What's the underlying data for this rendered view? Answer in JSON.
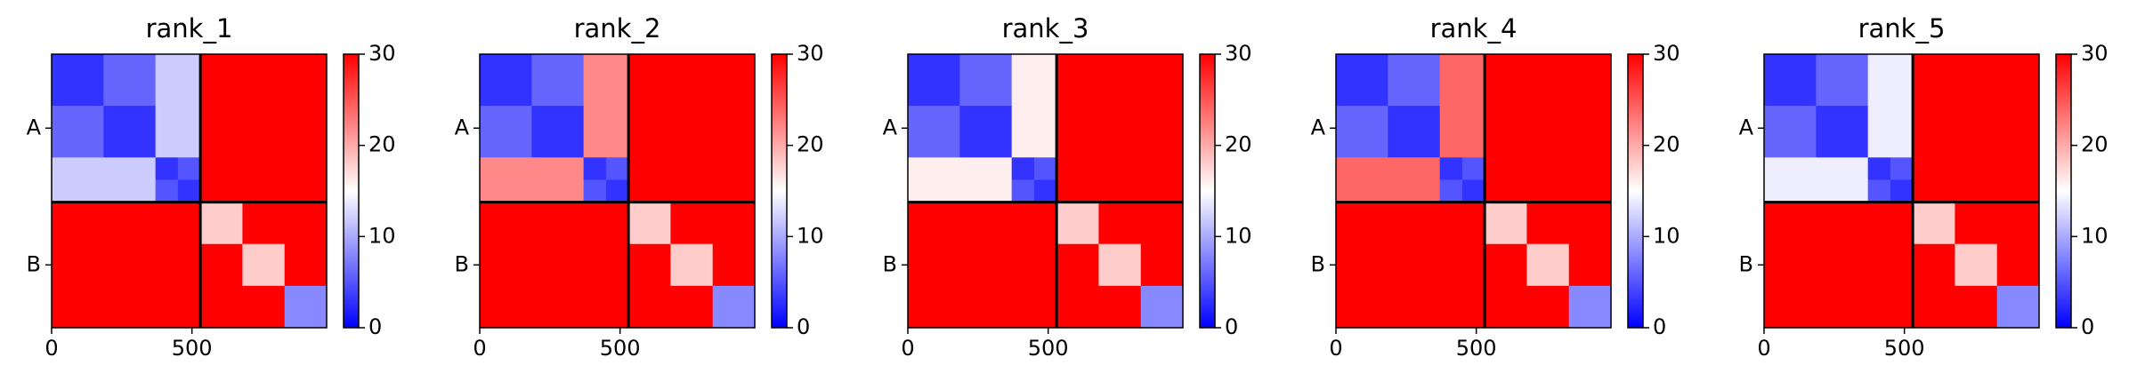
{
  "chart_data": [
    {
      "type": "heatmap",
      "title": "rank_1",
      "xbins": [
        0,
        185,
        370,
        450,
        530,
        680,
        830,
        980
      ],
      "ybins": [
        0,
        185,
        370,
        450,
        530,
        680,
        830,
        980
      ],
      "xlim": [
        0,
        980
      ],
      "ylim": [
        980,
        0
      ],
      "xticks": [
        0,
        500
      ],
      "yticks": [
        {
          "value": 265,
          "label": "A"
        },
        {
          "value": 755,
          "label": "B"
        }
      ],
      "boundaries": [
        530
      ],
      "clim": [
        0,
        30
      ],
      "cticks": [
        0,
        10,
        20,
        30
      ],
      "colormap": [
        "#0000ff",
        "#ffffff",
        "#ff0000"
      ],
      "values": [
        [
          3,
          6,
          12,
          12,
          30,
          30,
          30
        ],
        [
          6,
          3,
          12,
          12,
          30,
          30,
          30
        ],
        [
          12,
          12,
          3,
          5,
          30,
          30,
          30
        ],
        [
          12,
          12,
          5,
          3,
          30,
          30,
          30
        ],
        [
          30,
          30,
          30,
          30,
          18,
          30,
          30
        ],
        [
          30,
          30,
          30,
          30,
          30,
          18,
          30
        ],
        [
          30,
          30,
          30,
          30,
          30,
          30,
          8
        ]
      ]
    },
    {
      "type": "heatmap",
      "title": "rank_2",
      "xbins": [
        0,
        185,
        370,
        450,
        530,
        680,
        830,
        980
      ],
      "ybins": [
        0,
        185,
        370,
        450,
        530,
        680,
        830,
        980
      ],
      "xlim": [
        0,
        980
      ],
      "ylim": [
        980,
        0
      ],
      "xticks": [
        0,
        500
      ],
      "yticks": [
        {
          "value": 265,
          "label": "A"
        },
        {
          "value": 755,
          "label": "B"
        }
      ],
      "boundaries": [
        530
      ],
      "clim": [
        0,
        30
      ],
      "cticks": [
        0,
        10,
        20,
        30
      ],
      "colormap": [
        "#0000ff",
        "#ffffff",
        "#ff0000"
      ],
      "values": [
        [
          3,
          6,
          22,
          22,
          30,
          30,
          30
        ],
        [
          6,
          3,
          22,
          22,
          30,
          30,
          30
        ],
        [
          22,
          22,
          3,
          5,
          30,
          30,
          30
        ],
        [
          22,
          22,
          5,
          3,
          30,
          30,
          30
        ],
        [
          30,
          30,
          30,
          30,
          18,
          30,
          30
        ],
        [
          30,
          30,
          30,
          30,
          30,
          18,
          30
        ],
        [
          30,
          30,
          30,
          30,
          30,
          30,
          8
        ]
      ]
    },
    {
      "type": "heatmap",
      "title": "rank_3",
      "xbins": [
        0,
        185,
        370,
        450,
        530,
        680,
        830,
        980
      ],
      "ybins": [
        0,
        185,
        370,
        450,
        530,
        680,
        830,
        980
      ],
      "xlim": [
        0,
        980
      ],
      "ylim": [
        980,
        0
      ],
      "xticks": [
        0,
        500
      ],
      "yticks": [
        {
          "value": 265,
          "label": "A"
        },
        {
          "value": 755,
          "label": "B"
        }
      ],
      "boundaries": [
        530
      ],
      "clim": [
        0,
        30
      ],
      "cticks": [
        0,
        10,
        20,
        30
      ],
      "colormap": [
        "#0000ff",
        "#ffffff",
        "#ff0000"
      ],
      "values": [
        [
          3,
          6,
          16,
          16,
          30,
          30,
          30
        ],
        [
          6,
          3,
          16,
          16,
          30,
          30,
          30
        ],
        [
          16,
          16,
          3,
          5,
          30,
          30,
          30
        ],
        [
          16,
          16,
          5,
          3,
          30,
          30,
          30
        ],
        [
          30,
          30,
          30,
          30,
          18,
          30,
          30
        ],
        [
          30,
          30,
          30,
          30,
          30,
          18,
          30
        ],
        [
          30,
          30,
          30,
          30,
          30,
          30,
          8
        ]
      ]
    },
    {
      "type": "heatmap",
      "title": "rank_4",
      "xbins": [
        0,
        185,
        370,
        450,
        530,
        680,
        830,
        980
      ],
      "ybins": [
        0,
        185,
        370,
        450,
        530,
        680,
        830,
        980
      ],
      "xlim": [
        0,
        980
      ],
      "ylim": [
        980,
        0
      ],
      "xticks": [
        0,
        500
      ],
      "yticks": [
        {
          "value": 265,
          "label": "A"
        },
        {
          "value": 755,
          "label": "B"
        }
      ],
      "boundaries": [
        530
      ],
      "clim": [
        0,
        30
      ],
      "cticks": [
        0,
        10,
        20,
        30
      ],
      "colormap": [
        "#0000ff",
        "#ffffff",
        "#ff0000"
      ],
      "values": [
        [
          3,
          6,
          24,
          24,
          30,
          30,
          30
        ],
        [
          6,
          3,
          24,
          24,
          30,
          30,
          30
        ],
        [
          24,
          24,
          3,
          5,
          30,
          30,
          30
        ],
        [
          24,
          24,
          5,
          3,
          30,
          30,
          30
        ],
        [
          30,
          30,
          30,
          30,
          18,
          30,
          30
        ],
        [
          30,
          30,
          30,
          30,
          30,
          18,
          30
        ],
        [
          30,
          30,
          30,
          30,
          30,
          30,
          8
        ]
      ]
    },
    {
      "type": "heatmap",
      "title": "rank_5",
      "xbins": [
        0,
        185,
        370,
        450,
        530,
        680,
        830,
        980
      ],
      "ybins": [
        0,
        185,
        370,
        450,
        530,
        680,
        830,
        980
      ],
      "xlim": [
        0,
        980
      ],
      "ylim": [
        980,
        0
      ],
      "xticks": [
        0,
        500
      ],
      "yticks": [
        {
          "value": 265,
          "label": "A"
        },
        {
          "value": 755,
          "label": "B"
        }
      ],
      "boundaries": [
        530
      ],
      "clim": [
        0,
        30
      ],
      "cticks": [
        0,
        10,
        20,
        30
      ],
      "colormap": [
        "#0000ff",
        "#ffffff",
        "#ff0000"
      ],
      "values": [
        [
          3,
          6,
          14,
          14,
          30,
          30,
          30
        ],
        [
          6,
          3,
          14,
          14,
          30,
          30,
          30
        ],
        [
          14,
          14,
          3,
          5,
          30,
          30,
          30
        ],
        [
          14,
          14,
          5,
          3,
          30,
          30,
          30
        ],
        [
          30,
          30,
          30,
          30,
          18,
          30,
          30
        ],
        [
          30,
          30,
          30,
          30,
          30,
          18,
          30
        ],
        [
          30,
          30,
          30,
          30,
          30,
          30,
          8
        ]
      ]
    }
  ]
}
